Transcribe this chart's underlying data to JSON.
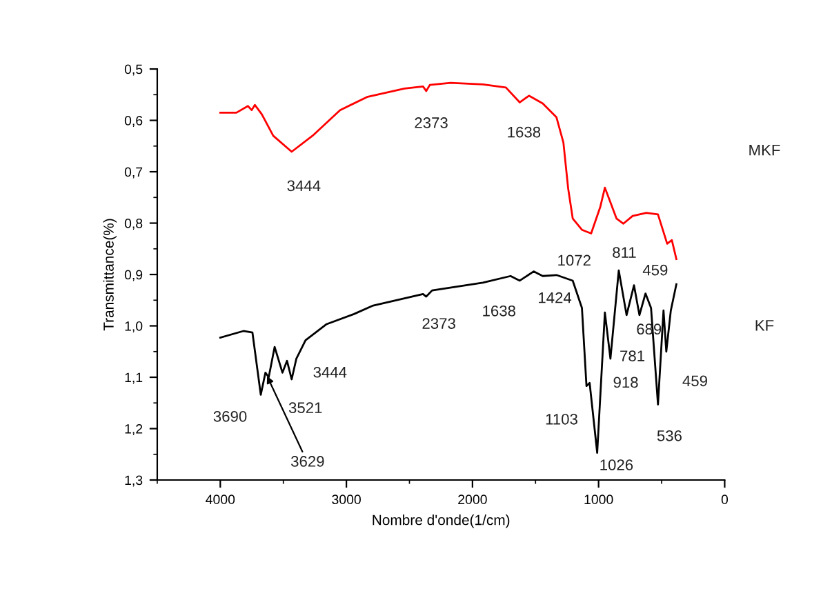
{
  "chart_data": {
    "type": "line",
    "xlabel": "Nombre d'onde(1/cm)",
    "ylabel": "Transmittance(%)",
    "xlim": [
      4500,
      0
    ],
    "xticks": [
      4000,
      3000,
      2000,
      1000,
      0
    ],
    "ylim": [
      1.3,
      0.5
    ],
    "yticks": [
      {
        "value": 0.5,
        "label": "0,5"
      },
      {
        "value": 0.6,
        "label": "0,6"
      },
      {
        "value": 0.7,
        "label": "0,7"
      },
      {
        "value": 0.8,
        "label": "0,8"
      },
      {
        "value": 0.9,
        "label": "0,9"
      },
      {
        "value": 1.0,
        "label": "1,0"
      },
      {
        "value": 1.1,
        "label": "1,1"
      },
      {
        "value": 1.2,
        "label": "1,2"
      },
      {
        "value": 1.3,
        "label": "1,3"
      }
    ],
    "grid": false,
    "legend": false,
    "marker": "none",
    "line_style": "solid",
    "series": [
      {
        "name": "MKF",
        "color": "#ff0000",
        "x": [
          4000,
          3872,
          3781,
          3751,
          3726,
          3671,
          3580,
          3434,
          3269,
          3050,
          2831,
          2539,
          2392,
          2367,
          2338,
          2173,
          1918,
          1735,
          1625,
          1552,
          1443,
          1334,
          1279,
          1241,
          1205,
          1132,
          1059,
          986,
          950,
          913,
          858,
          803,
          730,
          621,
          529,
          456,
          419,
          383
        ],
        "values": [
          0.585,
          0.585,
          0.572,
          0.58,
          0.57,
          0.588,
          0.63,
          0.661,
          0.63,
          0.58,
          0.554,
          0.538,
          0.534,
          0.543,
          0.531,
          0.527,
          0.53,
          0.536,
          0.565,
          0.552,
          0.567,
          0.594,
          0.643,
          0.733,
          0.791,
          0.813,
          0.82,
          0.768,
          0.731,
          0.755,
          0.791,
          0.801,
          0.786,
          0.78,
          0.783,
          0.84,
          0.833,
          0.87
        ]
      },
      {
        "name": "KF",
        "color": "#000000",
        "x": [
          4000,
          3817,
          3745,
          3679,
          3642,
          3616,
          3569,
          3507,
          3471,
          3434,
          3397,
          3324,
          3160,
          2940,
          2794,
          2392,
          2367,
          2320,
          1918,
          1698,
          1625,
          1515,
          1443,
          1334,
          1205,
          1132,
          1096,
          1071,
          1011,
          950,
          906,
          840,
          778,
          719,
          676,
          628,
          584,
          529,
          485,
          463,
          427,
          383
        ],
        "values": [
          1.023,
          1.01,
          1.013,
          1.134,
          1.091,
          1.1,
          1.041,
          1.091,
          1.068,
          1.104,
          1.064,
          1.028,
          0.997,
          0.977,
          0.961,
          0.938,
          0.943,
          0.931,
          0.916,
          0.903,
          0.912,
          0.894,
          0.903,
          0.901,
          0.912,
          0.965,
          1.117,
          1.111,
          1.247,
          0.974,
          1.064,
          0.892,
          0.979,
          0.921,
          0.979,
          0.937,
          0.965,
          1.153,
          0.97,
          1.05,
          0.97,
          0.919
        ]
      }
    ],
    "annotations": [
      {
        "text": "3444",
        "x": 3444,
        "y": 0.659
      },
      {
        "text": "2373",
        "x": 2373,
        "y": 0.54
      },
      {
        "text": "1638",
        "x": 1638,
        "y": 0.562
      },
      {
        "text": "1072",
        "x": 1072,
        "y": 0.819
      },
      {
        "text": "811",
        "x": 811,
        "y": 0.8
      },
      {
        "text": "459",
        "x": 459,
        "y": 0.838
      },
      {
        "text": "2373",
        "x": 2373,
        "y": 0.942
      },
      {
        "text": "1638",
        "x": 1638,
        "y": 0.91
      },
      {
        "text": "1424",
        "x": 1424,
        "y": 0.903
      },
      {
        "text": "689",
        "x": 676,
        "y": 0.979
      },
      {
        "text": "781",
        "x": 778,
        "y": 0.979
      },
      {
        "text": "918",
        "x": 906,
        "y": 1.064
      },
      {
        "text": "459",
        "x": 463,
        "y": 1.05
      },
      {
        "text": "3444",
        "x": 3434,
        "y": 1.104
      },
      {
        "text": "3521",
        "x": 3507,
        "y": 1.091
      },
      {
        "text": "3690",
        "x": 3679,
        "y": 1.134
      },
      {
        "text": "3629",
        "x": 3642,
        "y": 1.091
      },
      {
        "text": "1103",
        "x": 1096,
        "y": 1.117
      },
      {
        "text": "1026",
        "x": 1011,
        "y": 1.247
      },
      {
        "text": "536",
        "x": 529,
        "y": 1.153
      }
    ]
  }
}
